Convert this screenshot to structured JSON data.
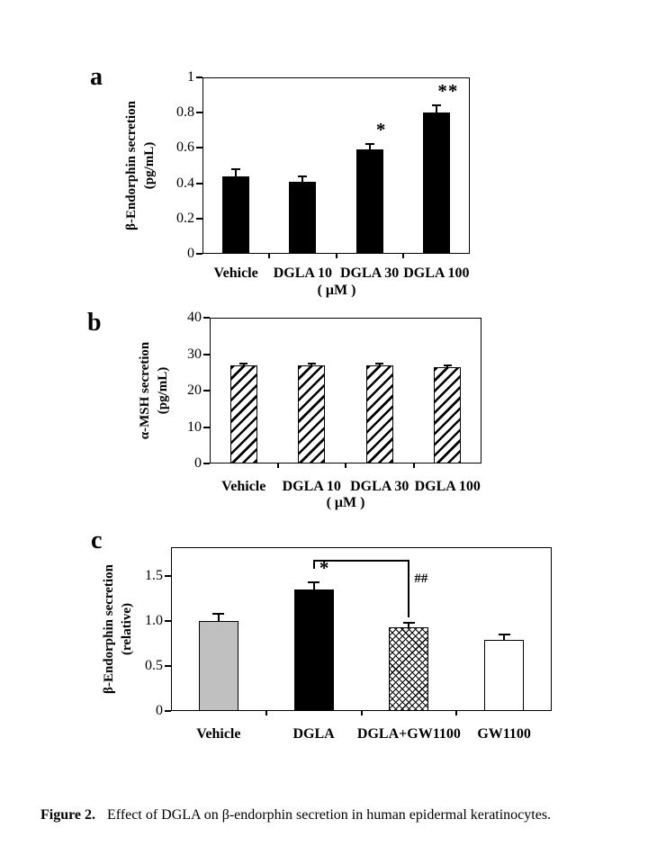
{
  "figure": {
    "caption_label": "Figure 2.",
    "caption_text": "Effect of DGLA on β-endorphin secretion in human epidermal keratinocytes."
  },
  "colors": {
    "background": "#ffffff",
    "ink": "#000000",
    "bar_gray": "#c0c0c0"
  },
  "chart_data": [
    {
      "id": "a",
      "type": "bar",
      "panel_label": "a",
      "ylabel_line1": "β-Endorphin secretion",
      "ylabel_line2": "(pg/mL)",
      "xlabel": "( μM )",
      "categories": [
        "Vehicle",
        "DGLA 10",
        "DGLA 30",
        "DGLA 100"
      ],
      "values": [
        0.44,
        0.41,
        0.59,
        0.8
      ],
      "errors": [
        0.04,
        0.03,
        0.03,
        0.04
      ],
      "significance": [
        "",
        "",
        "*",
        "**"
      ],
      "bar_styles": [
        "black",
        "black",
        "black",
        "black"
      ],
      "ylim": [
        0,
        1
      ],
      "ytick_values": [
        0,
        0.2,
        0.4,
        0.6,
        0.8,
        1
      ],
      "ytick_labels": [
        "0",
        "0.2",
        "0.4",
        "0.6",
        "0.8",
        "1"
      ],
      "grid": "off",
      "legend": "none"
    },
    {
      "id": "b",
      "type": "bar",
      "panel_label": "b",
      "ylabel_line1": "α-MSH secretion",
      "ylabel_line2": "(pg/mL)",
      "xlabel": "( μM )",
      "categories": [
        "Vehicle",
        "DGLA 10",
        "DGLA 30",
        "DGLA 100"
      ],
      "values": [
        27,
        27,
        26.8,
        26.3
      ],
      "errors": [
        0.5,
        0.5,
        0.5,
        0.5
      ],
      "significance": [
        "",
        "",
        "",
        ""
      ],
      "bar_styles": [
        "hatch",
        "hatch",
        "hatch",
        "hatch"
      ],
      "ylim": [
        0,
        40
      ],
      "ytick_values": [
        0,
        10,
        20,
        30,
        40
      ],
      "ytick_labels": [
        "0",
        "10",
        "20",
        "30",
        "40"
      ],
      "grid": "off",
      "legend": "none"
    },
    {
      "id": "c",
      "type": "bar",
      "panel_label": "c",
      "ylabel_line1": "β-Endorphin secretion",
      "ylabel_line2": "(relative)",
      "xlabel": "",
      "categories": [
        "Vehicle",
        "DGLA",
        "DGLA+GW1100",
        "GW1100"
      ],
      "values": [
        1.0,
        1.35,
        0.93,
        0.79
      ],
      "errors": [
        0.08,
        0.08,
        0.05,
        0.06
      ],
      "significance": [
        "",
        "*",
        "",
        ""
      ],
      "bar_styles": [
        "gray",
        "black",
        "crosshatch",
        "white"
      ],
      "ylim": [
        0,
        1.82
      ],
      "ytick_values": [
        0,
        0.5,
        1.0,
        1.5
      ],
      "ytick_labels": [
        "0",
        "0.5",
        "1.0",
        "1.5"
      ],
      "grid": "off",
      "legend": "none",
      "bracket": {
        "from_index": 1,
        "to_index": 2,
        "top_value": 1.68,
        "from_end_value": 1.58,
        "to_end_value": 1.04,
        "label": "##"
      }
    }
  ]
}
